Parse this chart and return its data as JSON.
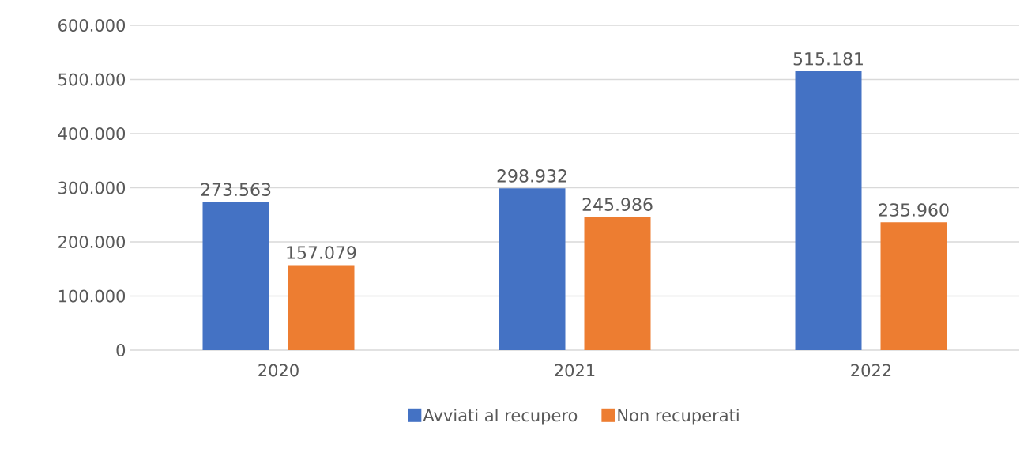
{
  "chart_data": {
    "type": "bar",
    "categories": [
      "2020",
      "2021",
      "2022"
    ],
    "series": [
      {
        "name": "Avviati al recupero",
        "color": "#4472c4",
        "values": [
          273563,
          298932,
          515181
        ],
        "value_labels": [
          "273.563",
          "298.932",
          "515.181"
        ]
      },
      {
        "name": "Non recuperati",
        "color": "#ed7d31",
        "values": [
          157079,
          245986,
          235960
        ],
        "value_labels": [
          "157.079",
          "245.986",
          "235.960"
        ]
      }
    ],
    "ylim": [
      0,
      600000
    ],
    "yticks": [
      0,
      {
        "value": 100000,
        "label": "100.000"
      },
      {
        "value": 200000,
        "label": "200.000"
      },
      {
        "value": 300000,
        "label": "300.000"
      },
      {
        "value": 400000,
        "label": "400.000"
      },
      {
        "value": 500000,
        "label": "500.000"
      },
      {
        "value": 600000,
        "label": "600.000"
      }
    ],
    "grid": "y",
    "legend": "bottom"
  }
}
